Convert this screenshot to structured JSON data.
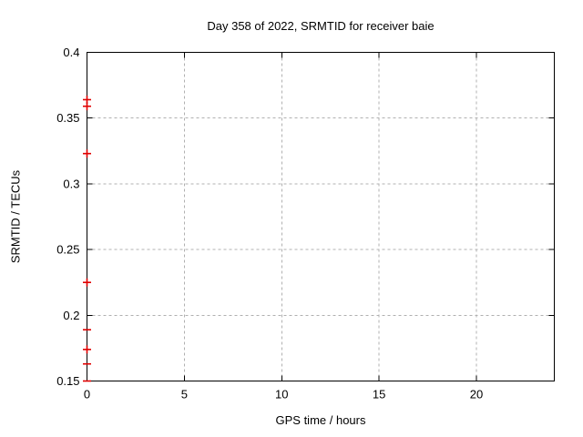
{
  "title": "Day 358 of 2022, SRMTID for receiver baie",
  "colors": {
    "background": "#ffffff",
    "axis": "#000000",
    "grid": "#b0b0b0",
    "text": "#000000",
    "point": "#e00000"
  },
  "chart_data": {
    "type": "scatter",
    "title": "Day 358 of 2022, SRMTID for receiver baie",
    "xlabel": "GPS time / hours",
    "ylabel": "SRMTID / TECUs",
    "xlim": [
      0,
      24
    ],
    "ylim": [
      0.15,
      0.4
    ],
    "xticks": [
      0,
      5,
      10,
      15,
      20
    ],
    "yticks": [
      0.15,
      0.2,
      0.25,
      0.3,
      0.35,
      0.4
    ],
    "grid": true,
    "grid_style": "dashed",
    "legend_position": "none",
    "series": [
      {
        "name": "SRMTID",
        "color": "#e00000",
        "marker_default": "plus",
        "points": [
          {
            "x": 0,
            "y": 0.364,
            "marker": "plus"
          },
          {
            "x": 0,
            "y": 0.359,
            "marker": "plus"
          },
          {
            "x": 0,
            "y": 0.323,
            "marker": "plus"
          },
          {
            "x": 0,
            "y": 0.225,
            "marker": "plus"
          },
          {
            "x": 0,
            "y": 0.189,
            "marker": "dash"
          },
          {
            "x": 0,
            "y": 0.174,
            "marker": "plus"
          },
          {
            "x": 0,
            "y": 0.163,
            "marker": "dash"
          },
          {
            "x": 0,
            "y": 0.15,
            "marker": "dash"
          }
        ]
      }
    ]
  }
}
